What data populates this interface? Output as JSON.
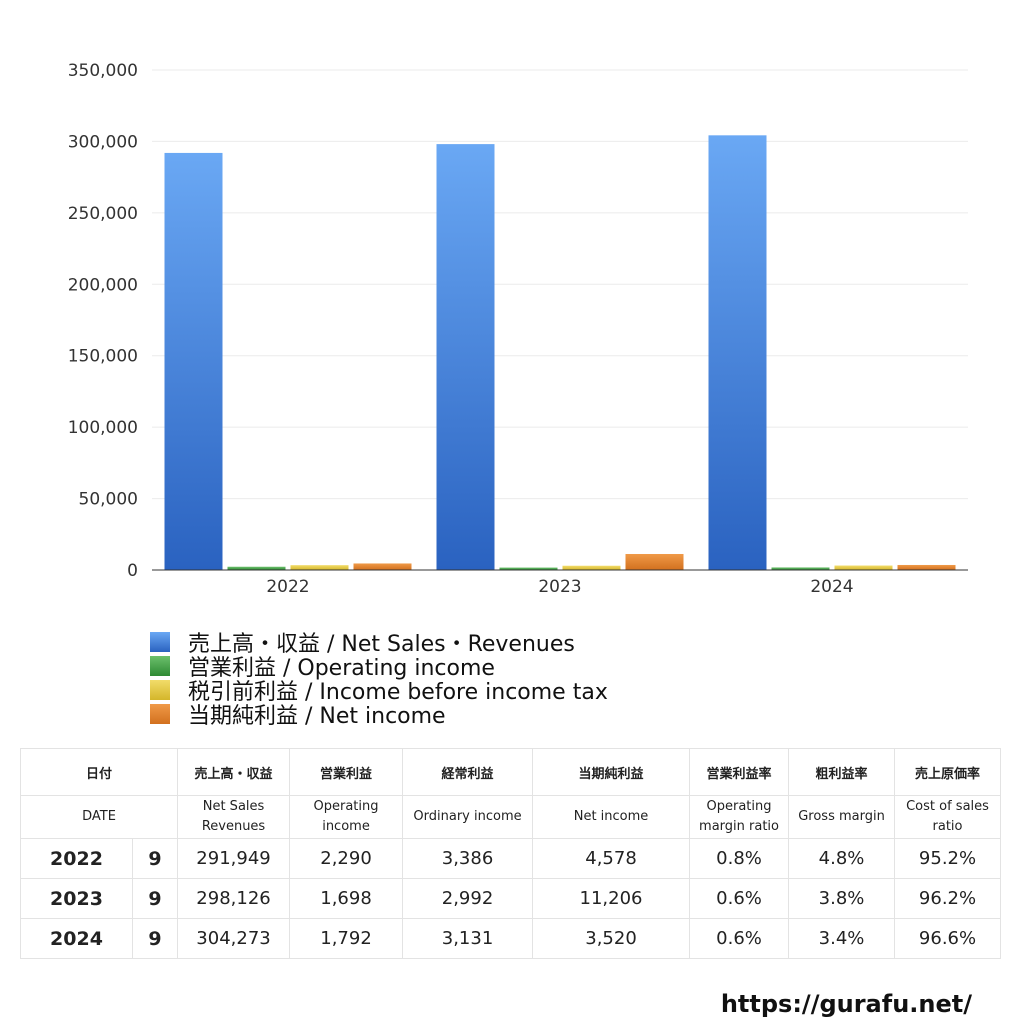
{
  "chart_data": {
    "type": "bar",
    "categories": [
      "2022",
      "2023",
      "2024"
    ],
    "series": [
      {
        "name": "売上高・収益 / Net Sales・Revenues",
        "color": "#4a86e0",
        "values": [
          291949,
          298126,
          304273
        ]
      },
      {
        "name": "営業利益 / Operating income",
        "color": "#4aa04a",
        "values": [
          2290,
          1698,
          1792
        ]
      },
      {
        "name": "税引前利益 / Income before income tax",
        "color": "#e0c848",
        "values": [
          3386,
          2992,
          3131
        ]
      },
      {
        "name": "当期純利益 / Net income",
        "color": "#e08030",
        "values": [
          4578,
          11206,
          3520
        ]
      }
    ],
    "yticks": [
      "0",
      "50,000",
      "100,000",
      "150,000",
      "200,000",
      "250,000",
      "300,000",
      "350,000"
    ],
    "ylim": [
      0,
      350000
    ],
    "title": "",
    "xlabel": "",
    "ylabel": ""
  },
  "table": {
    "header_jp": [
      "日付",
      "売上高・収益",
      "営業利益",
      "経常利益",
      "当期純利益",
      "営業利益率",
      "粗利益率",
      "売上原価率"
    ],
    "header_en": [
      "DATE",
      "Net Sales Revenues",
      "Operating income",
      "Ordinary income",
      "Net income",
      "Operating margin ratio",
      "Gross margin",
      "Cost of sales ratio"
    ],
    "rows": [
      {
        "year": "2022",
        "month": "9",
        "sales": "291,949",
        "op": "2,290",
        "ord": "3,386",
        "net": "4,578",
        "opm": "0.8%",
        "gm": "4.8%",
        "cos": "95.2%"
      },
      {
        "year": "2023",
        "month": "9",
        "sales": "298,126",
        "op": "1,698",
        "ord": "2,992",
        "net": "11,206",
        "opm": "0.6%",
        "gm": "3.8%",
        "cos": "96.2%"
      },
      {
        "year": "2024",
        "month": "9",
        "sales": "304,273",
        "op": "1,792",
        "ord": "3,131",
        "net": "3,520",
        "opm": "0.6%",
        "gm": "3.4%",
        "cos": "96.6%"
      }
    ]
  },
  "site_url": "https://gurafu.net/"
}
